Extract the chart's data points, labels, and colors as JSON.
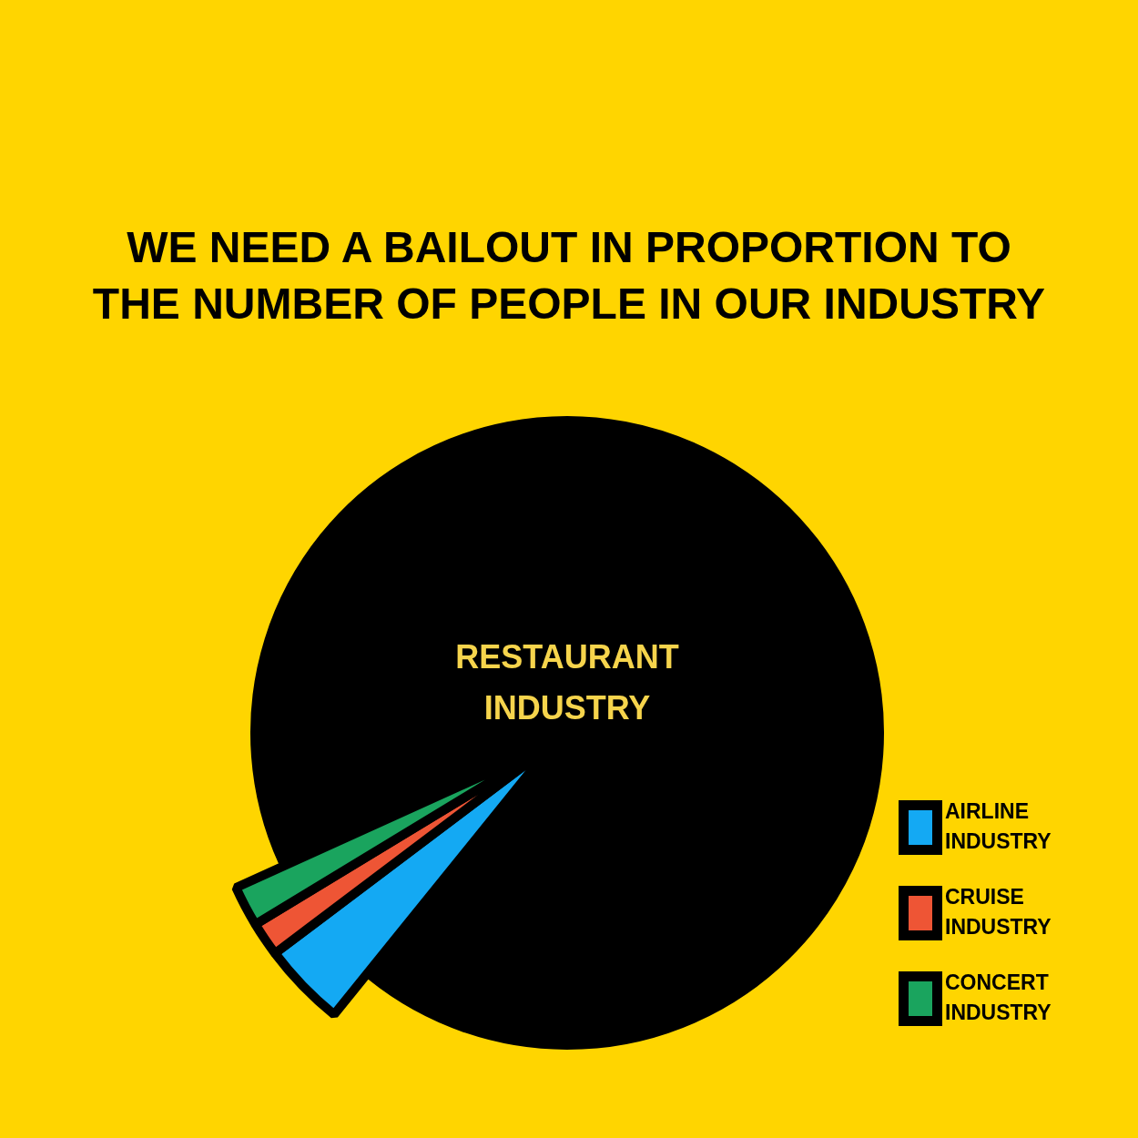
{
  "chart_data": {
    "type": "pie",
    "title": "WE NEED A BAILOUT IN PROPORTION TO THE NUMBER OF PEOPLE IN OUR INDUSTRY",
    "categories": [
      "RESTAURANT INDUSTRY",
      "AIRLINE INDUSTRY",
      "CRUISE INDUSTRY",
      "CONCERT INDUSTRY"
    ],
    "values": [
      92.6,
      3.9,
      1.6,
      1.9
    ],
    "colors": [
      "#000000",
      "#14a9f3",
      "#ee5535",
      "#1aa45e"
    ],
    "legend": "right"
  }
}
